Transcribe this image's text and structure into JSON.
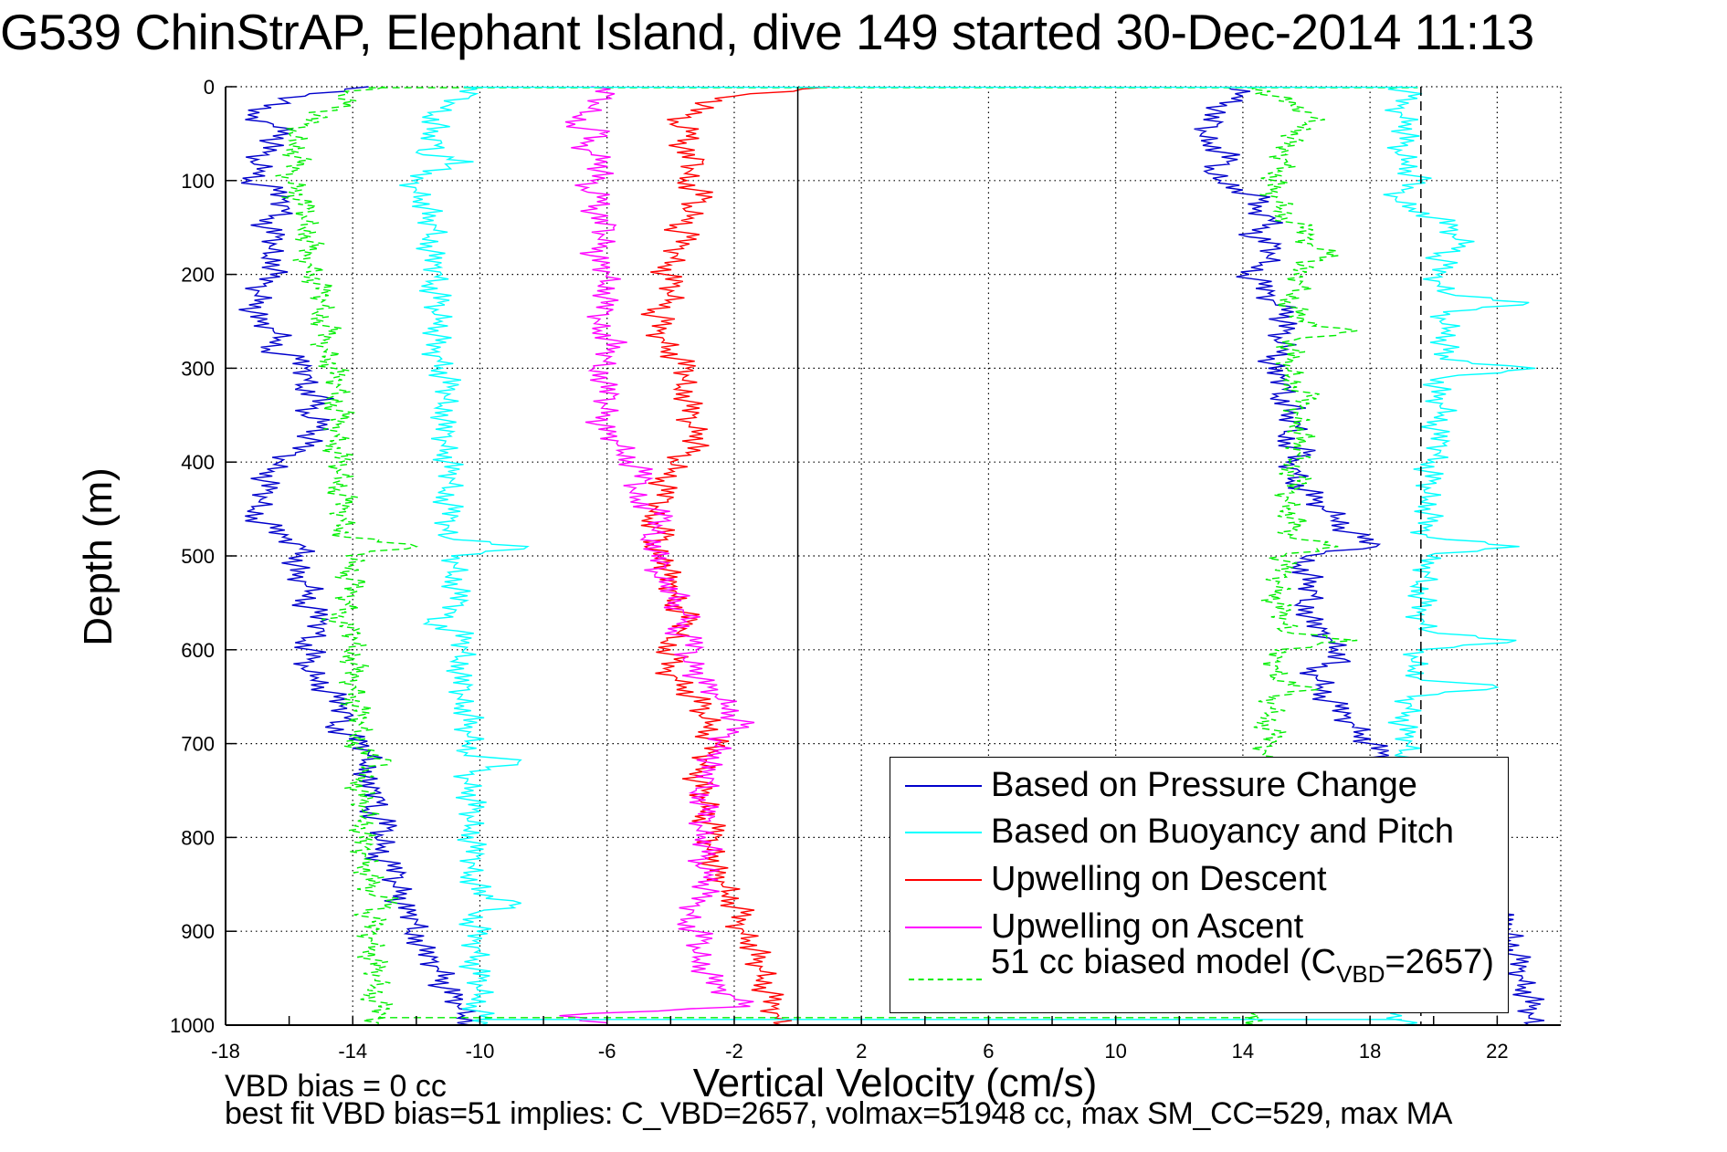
{
  "chart_data": {
    "type": "line",
    "title": "G539 ChinStrAP, Elephant Island, dive 149 started 30-Dec-2014 11:13",
    "xlabel": "Vertical Velocity (cm/s)",
    "ylabel": "Depth (m)",
    "xlim": [
      -18,
      24
    ],
    "ylim": [
      0,
      1000
    ],
    "y_reversed": true,
    "grid": true,
    "xticks": [
      -18,
      -14,
      -10,
      -6,
      -2,
      2,
      6,
      10,
      14,
      18,
      22
    ],
    "yticks": [
      0,
      100,
      200,
      300,
      400,
      500,
      600,
      700,
      800,
      900,
      1000
    ],
    "xtick_labels": [
      "-18",
      "-14",
      "-10",
      "-6",
      "-2",
      "2",
      "6",
      "10",
      "14",
      "18",
      "22"
    ],
    "ytick_labels": [
      "0",
      "100",
      "200",
      "300",
      "400",
      "500",
      "600",
      "700",
      "800",
      "900",
      "1000"
    ],
    "reference_lines": [
      {
        "name": "zero-velocity",
        "x": 0,
        "style": "solid",
        "color": "#000000"
      },
      {
        "name": "max-ascent-marker",
        "x": 19.6,
        "style": "dashed",
        "color": "#000000"
      }
    ],
    "legend": {
      "placement": "lower-right",
      "entries": [
        {
          "label": "Based on Pressure Change",
          "color": "#0000cc",
          "style": "solid"
        },
        {
          "label": "Based on Buoyancy and Pitch",
          "color": "#00ffff",
          "style": "solid"
        },
        {
          "label": "Upwelling on Descent",
          "color": "#ff0000",
          "style": "solid"
        },
        {
          "label": "Upwelling on Ascent",
          "color": "#ff00ff",
          "style": "solid"
        },
        {
          "label_main": "51 cc biased model (C",
          "label_sub": "VBD",
          "label_tail": "=2657)",
          "color": "#00ee00",
          "style": "dashed"
        }
      ]
    },
    "depth_step": 10,
    "depths_note": "values sampled every 10 m from 0 to 1000 m",
    "series": [
      {
        "name": "Pressure Change (descent)",
        "color": "#0000cc",
        "style": "solid",
        "values": [
          -13.5,
          -15.5,
          -16.8,
          -17.3,
          -16.5,
          -16.0,
          -16.6,
          -16.8,
          -17.2,
          -16.8,
          -17.2,
          -16.5,
          -16.2,
          -16.0,
          -16.5,
          -16.8,
          -16.4,
          -16.6,
          -16.7,
          -16.3,
          -16.6,
          -16.8,
          -17.0,
          -16.8,
          -17.2,
          -17.0,
          -16.5,
          -16.3,
          -16.6,
          -15.8,
          -15.5,
          -15.3,
          -15.6,
          -15.0,
          -15.3,
          -15.6,
          -14.8,
          -15.2,
          -15.5,
          -15.8,
          -16.3,
          -16.5,
          -16.8,
          -16.7,
          -16.9,
          -17.1,
          -17.0,
          -16.6,
          -16.2,
          -15.5,
          -15.6,
          -15.8,
          -15.9,
          -15.5,
          -15.3,
          -15.5,
          -15.2,
          -15.0,
          -14.9,
          -15.5,
          -15.3,
          -15.4,
          -15.6,
          -15.1,
          -14.9,
          -14.6,
          -14.4,
          -14.0,
          -14.6,
          -14.2,
          -13.8,
          -13.5,
          -13.6,
          -13.4,
          -13.8,
          -13.3,
          -13.0,
          -13.5,
          -13.2,
          -12.9,
          -13.3,
          -13.0,
          -13.2,
          -12.9,
          -12.5,
          -12.7,
          -12.3,
          -12.6,
          -12.3,
          -12.0,
          -12.2,
          -11.8,
          -11.9,
          -11.5,
          -11.3,
          -11.0,
          -11.2,
          -10.8,
          -10.7,
          -10.5,
          -10.3
        ]
      },
      {
        "name": "Buoyancy and Pitch (descent)",
        "color": "#00ffff",
        "style": "solid",
        "values": [
          -10.5,
          -10.3,
          -11.0,
          -11.5,
          -11.3,
          -11.8,
          -11.2,
          -12.0,
          -10.2,
          -11.8,
          -12.1,
          -12.0,
          -11.8,
          -11.6,
          -11.8,
          -11.4,
          -11.6,
          -11.5,
          -11.6,
          -11.4,
          -11.2,
          -11.5,
          -11.4,
          -11.3,
          -11.5,
          -11.2,
          -11.3,
          -11.4,
          -11.5,
          -11.2,
          -11.2,
          -11.1,
          -11.0,
          -11.1,
          -11.2,
          -11.0,
          -11.3,
          -11.0,
          -11.1,
          -11.0,
          -11.0,
          -11.0,
          -10.9,
          -11.1,
          -11.0,
          -11.0,
          -10.9,
          -11.0,
          -11.1,
          -8.5,
          -10.9,
          -10.8,
          -10.9,
          -10.7,
          -10.8,
          -10.6,
          -10.8,
          -11.6,
          -10.7,
          -10.6,
          -10.5,
          -10.7,
          -10.5,
          -10.8,
          -10.4,
          -10.6,
          -10.5,
          -10.3,
          -10.5,
          -10.4,
          -10.3,
          -10.4,
          -8.8,
          -10.3,
          -10.4,
          -10.2,
          -10.3,
          -10.2,
          -10.4,
          -10.3,
          -10.2,
          -10.3,
          -10.1,
          -10.2,
          -10.3,
          -10.1,
          -10.2,
          -8.7,
          -10.1,
          -10.2,
          -10.1,
          -10.2,
          -10.0,
          -10.1,
          -10.2,
          -10.0,
          -10.1,
          -10.0,
          -10.1,
          -10.0,
          -10.0
        ]
      },
      {
        "name": "Upwelling on Descent",
        "color": "#ff0000",
        "style": "solid",
        "values": [
          1.0,
          -2.0,
          -3.0,
          -3.5,
          -4.0,
          -3.2,
          -3.5,
          -3.8,
          -3.0,
          -3.4,
          -3.5,
          -3.2,
          -3.0,
          -3.6,
          -3.3,
          -3.8,
          -3.5,
          -3.7,
          -3.8,
          -4.0,
          -4.2,
          -3.9,
          -4.1,
          -4.0,
          -4.5,
          -4.3,
          -4.4,
          -4.2,
          -4.0,
          -3.8,
          -3.5,
          -3.6,
          -3.7,
          -3.4,
          -3.5,
          -3.3,
          -3.4,
          -3.0,
          -3.2,
          -3.5,
          -4.0,
          -3.9,
          -4.2,
          -4.3,
          -4.1,
          -4.5,
          -4.6,
          -4.4,
          -4.2,
          -4.8,
          -4.3,
          -4.0,
          -4.2,
          -4.0,
          -3.8,
          -3.9,
          -3.6,
          -3.5,
          -3.7,
          -4.1,
          -4.0,
          -3.9,
          -4.2,
          -3.8,
          -3.5,
          -3.3,
          -3.0,
          -3.1,
          -2.7,
          -2.8,
          -2.6,
          -2.8,
          -2.9,
          -3.0,
          -3.2,
          -3.0,
          -3.1,
          -2.8,
          -2.9,
          -2.7,
          -2.6,
          -2.8,
          -2.5,
          -2.7,
          -2.6,
          -2.4,
          -2.2,
          -2.0,
          -1.8,
          -1.9,
          -1.7,
          -1.5,
          -1.3,
          -1.4,
          -1.2,
          -1.1,
          -1.0,
          -0.9,
          -0.8,
          -0.6,
          -0.5
        ]
      },
      {
        "name": "Upwelling on Ascent",
        "color": "#ff00ff",
        "style": "solid",
        "values": [
          -6.5,
          -6.0,
          -6.5,
          -6.8,
          -7.0,
          -6.2,
          -6.8,
          -6.5,
          -6.0,
          -6.2,
          -6.5,
          -6.8,
          -6.0,
          -6.3,
          -6.5,
          -5.8,
          -6.2,
          -6.0,
          -6.5,
          -6.2,
          -6.0,
          -6.1,
          -5.9,
          -6.2,
          -6.0,
          -6.3,
          -6.2,
          -5.8,
          -6.0,
          -6.0,
          -6.4,
          -6.0,
          -6.2,
          -5.8,
          -6.1,
          -5.9,
          -6.3,
          -6.0,
          -5.7,
          -5.5,
          -5.2,
          -5.0,
          -4.8,
          -5.2,
          -5.0,
          -4.6,
          -4.2,
          -4.5,
          -4.8,
          -4.3,
          -4.6,
          -4.2,
          -4.5,
          -4.0,
          -3.8,
          -4.1,
          -3.6,
          -3.5,
          -3.8,
          -3.4,
          -3.2,
          -3.6,
          -3.0,
          -3.2,
          -2.8,
          -2.6,
          -2.2,
          -2.0,
          -1.8,
          -2.2,
          -2.5,
          -2.4,
          -2.8,
          -3.0,
          -2.7,
          -3.2,
          -2.9,
          -3.0,
          -2.8,
          -3.1,
          -2.9,
          -2.8,
          -3.0,
          -3.2,
          -2.7,
          -2.8,
          -3.0,
          -3.2,
          -3.3,
          -3.5,
          -3.2,
          -3.0,
          -3.3,
          -3.1,
          -2.9,
          -2.8,
          -2.5,
          -2.0,
          -1.5,
          -7.5,
          -6.0
        ]
      },
      {
        "name": "Pressure Change (ascent)",
        "color": "#0000cc",
        "style": "solid",
        "values": [
          13.5,
          14.0,
          13.5,
          12.8,
          13.2,
          12.7,
          13.0,
          13.4,
          13.5,
          12.8,
          13.3,
          14.0,
          14.5,
          14.3,
          15.0,
          14.8,
          14.2,
          15.0,
          14.8,
          14.6,
          14.2,
          14.5,
          14.8,
          15.0,
          15.6,
          15.2,
          15.3,
          15.0,
          15.4,
          15.0,
          14.8,
          15.2,
          15.5,
          15.1,
          15.6,
          15.2,
          15.8,
          15.3,
          15.5,
          15.9,
          15.4,
          15.8,
          15.6,
          16.0,
          16.2,
          16.5,
          17.0,
          17.2,
          17.6,
          18.2,
          16.0,
          15.8,
          16.1,
          15.9,
          16.3,
          15.8,
          16.2,
          16.0,
          16.5,
          16.8,
          17.0,
          17.2,
          16.0,
          16.3,
          16.5,
          16.6,
          16.9,
          17.2,
          17.5,
          17.8,
          18.0,
          18.3,
          18.5,
          18.8,
          19.0,
          19.2,
          19.5,
          19.8,
          20.0,
          20.2,
          20.4,
          20.6,
          20.8,
          21.0,
          21.2,
          21.4,
          21.6,
          21.8,
          22.0,
          22.2,
          22.3,
          22.4,
          22.5,
          22.6,
          22.7,
          22.8,
          22.9,
          23.0,
          23.0,
          23.0,
          23.0
        ]
      },
      {
        "name": "Buoyancy and Pitch (ascent)",
        "color": "#00ffff",
        "style": "solid",
        "values": [
          19.0,
          19.2,
          18.9,
          19.0,
          19.3,
          19.1,
          19.0,
          18.8,
          19.2,
          19.3,
          19.5,
          19.0,
          18.8,
          19.4,
          20.1,
          20.5,
          20.6,
          21.0,
          20.2,
          20.3,
          20.1,
          20.2,
          20.4,
          23.0,
          20.3,
          20.2,
          20.5,
          20.4,
          20.3,
          20.2,
          23.2,
          20.3,
          20.1,
          20.0,
          20.2,
          20.3,
          20.1,
          20.0,
          20.3,
          20.2,
          20.0,
          19.8,
          19.9,
          19.7,
          19.8,
          19.9,
          19.8,
          19.7,
          19.8,
          22.7,
          19.8,
          19.6,
          19.8,
          19.5,
          19.7,
          19.6,
          19.5,
          19.7,
          19.8,
          22.6,
          19.5,
          19.3,
          19.4,
          19.5,
          22.0,
          19.2,
          19.3,
          19.2,
          19.0,
          19.1,
          19.2,
          19.0,
          19.1,
          19.0,
          19.1,
          19.0,
          19.1,
          19.0,
          19.1,
          19.0,
          19.0,
          19.1,
          19.0,
          19.1,
          19.0,
          19.0,
          19.1,
          19.0,
          19.1,
          19.0,
          19.0,
          19.1,
          19.0,
          19.1,
          19.0,
          19.0,
          19.1,
          19.0,
          19.0,
          19.0,
          19.0
        ]
      },
      {
        "name": "51 cc biased model (descent)",
        "color": "#00ee00",
        "style": "dashed",
        "values": [
          -13.0,
          -14.5,
          -14.0,
          -15.2,
          -15.5,
          -16.0,
          -15.8,
          -15.7,
          -15.8,
          -15.9,
          -16.0,
          -15.6,
          -15.8,
          -15.4,
          -15.6,
          -15.5,
          -15.3,
          -15.4,
          -15.5,
          -15.3,
          -15.2,
          -15.1,
          -15.0,
          -15.0,
          -15.1,
          -14.9,
          -14.8,
          -14.9,
          -14.8,
          -14.7,
          -14.6,
          -14.6,
          -14.5,
          -14.6,
          -14.5,
          -14.4,
          -14.5,
          -14.4,
          -14.5,
          -14.5,
          -14.4,
          -14.5,
          -14.4,
          -14.4,
          -14.3,
          -14.3,
          -14.2,
          -14.3,
          -14.2,
          -12.0,
          -14.2,
          -14.0,
          -14.1,
          -14.0,
          -14.1,
          -14.1,
          -14.2,
          -14.6,
          -14.0,
          -14.0,
          -14.1,
          -13.9,
          -14.0,
          -14.0,
          -13.9,
          -13.9,
          -13.9,
          -13.8,
          -13.8,
          -13.9,
          -13.8,
          -13.8,
          -12.8,
          -13.7,
          -13.7,
          -13.8,
          -13.7,
          -13.7,
          -13.6,
          -13.6,
          -13.8,
          -13.6,
          -13.6,
          -13.5,
          -13.5,
          -13.5,
          -13.5,
          -12.6,
          -13.5,
          -13.4,
          -13.4,
          -13.4,
          -13.3,
          -13.4,
          -13.3,
          -13.3,
          -13.3,
          -13.3,
          -13.2,
          -13.2,
          -13.2
        ]
      },
      {
        "name": "51 cc biased model (ascent)",
        "color": "#00ee00",
        "style": "dashed",
        "values": [
          14.5,
          15.0,
          15.5,
          16.2,
          16.0,
          15.8,
          15.3,
          15.2,
          15.4,
          15.2,
          15.0,
          14.8,
          15.0,
          15.2,
          15.4,
          15.8,
          16.0,
          16.2,
          17.0,
          15.8,
          15.6,
          15.8,
          15.6,
          15.5,
          15.6,
          15.8,
          17.6,
          15.6,
          15.5,
          15.4,
          15.4,
          15.5,
          15.7,
          16.0,
          15.8,
          15.7,
          15.8,
          15.9,
          15.6,
          15.8,
          15.5,
          15.6,
          15.7,
          15.5,
          15.4,
          15.5,
          15.6,
          15.5,
          15.4,
          17.0,
          15.3,
          15.2,
          15.3,
          15.1,
          15.2,
          15.0,
          15.2,
          15.3,
          15.2,
          17.6,
          15.0,
          15.0,
          15.1,
          15.0,
          16.2,
          14.8,
          14.9,
          14.8,
          14.8,
          14.9,
          14.8,
          14.7,
          14.8,
          14.9,
          14.8,
          14.8,
          14.7,
          14.8,
          14.8,
          14.7,
          14.7,
          14.8,
          14.7,
          14.7,
          14.8,
          14.7,
          14.6,
          14.7,
          14.7,
          14.6,
          14.7,
          14.6,
          14.6,
          14.6,
          14.6,
          14.5,
          14.6,
          14.5,
          14.5,
          14.5,
          14.5
        ]
      }
    ]
  },
  "annotations": {
    "vbd_bias": "VBD bias = 0 cc",
    "best_fit": "best fit VBD bias=51 implies: C_VBD=2657, volmax=51948 cc, max SM_CC=529, max MA"
  }
}
